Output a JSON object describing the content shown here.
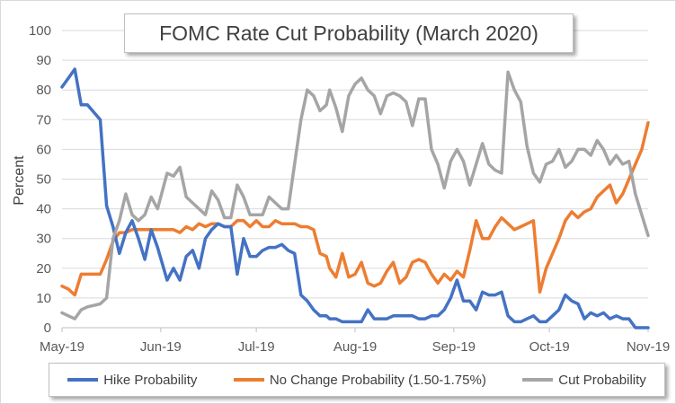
{
  "chart_data": {
    "type": "line",
    "title": "FOMC Rate Cut Probability (March 2020)",
    "xlabel": "",
    "ylabel": "Percent",
    "ylim": [
      0,
      100
    ],
    "yticks": [
      0,
      10,
      20,
      30,
      40,
      50,
      60,
      70,
      80,
      90,
      100
    ],
    "xlim": [
      "2019-05-01",
      "2019-11-01"
    ],
    "xticks": [
      {
        "date": "2019-05-01",
        "label": "May-19"
      },
      {
        "date": "2019-06-01",
        "label": "Jun-19"
      },
      {
        "date": "2019-07-01",
        "label": "Jul-19"
      },
      {
        "date": "2019-08-01",
        "label": "Aug-19"
      },
      {
        "date": "2019-09-01",
        "label": "Sep-19"
      },
      {
        "date": "2019-10-01",
        "label": "Oct-19"
      },
      {
        "date": "2019-11-01",
        "label": "Nov-19"
      }
    ],
    "grid": true,
    "legend_position": "bottom",
    "x": [
      "2019-05-01",
      "2019-05-03",
      "2019-05-05",
      "2019-05-07",
      "2019-05-09",
      "2019-05-13",
      "2019-05-15",
      "2019-05-17",
      "2019-05-19",
      "2019-05-21",
      "2019-05-23",
      "2019-05-25",
      "2019-05-27",
      "2019-05-29",
      "2019-05-31",
      "2019-06-03",
      "2019-06-05",
      "2019-06-07",
      "2019-06-09",
      "2019-06-11",
      "2019-06-13",
      "2019-06-15",
      "2019-06-17",
      "2019-06-19",
      "2019-06-21",
      "2019-06-23",
      "2019-06-25",
      "2019-06-27",
      "2019-06-29",
      "2019-07-01",
      "2019-07-03",
      "2019-07-05",
      "2019-07-07",
      "2019-07-09",
      "2019-07-11",
      "2019-07-13",
      "2019-07-15",
      "2019-07-17",
      "2019-07-19",
      "2019-07-21",
      "2019-07-23",
      "2019-07-24",
      "2019-07-26",
      "2019-07-28",
      "2019-07-30",
      "2019-08-01",
      "2019-08-03",
      "2019-08-05",
      "2019-08-07",
      "2019-08-09",
      "2019-08-11",
      "2019-08-13",
      "2019-08-15",
      "2019-08-17",
      "2019-08-19",
      "2019-08-21",
      "2019-08-23",
      "2019-08-25",
      "2019-08-27",
      "2019-08-29",
      "2019-08-31",
      "2019-09-02",
      "2019-09-04",
      "2019-09-06",
      "2019-09-08",
      "2019-09-10",
      "2019-09-12",
      "2019-09-14",
      "2019-09-16",
      "2019-09-18",
      "2019-09-20",
      "2019-09-22",
      "2019-09-24",
      "2019-09-26",
      "2019-09-28",
      "2019-09-30",
      "2019-10-02",
      "2019-10-04",
      "2019-10-06",
      "2019-10-08",
      "2019-10-10",
      "2019-10-12",
      "2019-10-14",
      "2019-10-16",
      "2019-10-18",
      "2019-10-20",
      "2019-10-22",
      "2019-10-24",
      "2019-10-26",
      "2019-10-28",
      "2019-10-30",
      "2019-11-01"
    ],
    "series": [
      {
        "name": "Hike Probability",
        "color": "#4472c4",
        "values": [
          81,
          84,
          87,
          75,
          75,
          70,
          41,
          34,
          25,
          32,
          36,
          30,
          23,
          33,
          27,
          16,
          20,
          16,
          24,
          26,
          20,
          30,
          33,
          35,
          34,
          34,
          18,
          30,
          24,
          24,
          26,
          27,
          27,
          28,
          26,
          25,
          11,
          9,
          6,
          4,
          4,
          3,
          3,
          2,
          2,
          2,
          2,
          6,
          3,
          3,
          3,
          4,
          4,
          4,
          4,
          3,
          3,
          4,
          4,
          6,
          10,
          16,
          9,
          9,
          6,
          12,
          11,
          11,
          12,
          4,
          2,
          2,
          3,
          4,
          2,
          2,
          4,
          6,
          11,
          9,
          8,
          3,
          5,
          4,
          5,
          3,
          4,
          3,
          3,
          0,
          0,
          0
        ]
      },
      {
        "name": "No Change Probability (1.50-1.75%)",
        "color": "#ed7d31",
        "values": [
          14,
          13,
          11,
          18,
          18,
          18,
          23,
          29,
          32,
          32,
          33,
          33,
          33,
          33,
          33,
          33,
          33,
          32,
          34,
          33,
          35,
          34,
          35,
          35,
          34,
          34,
          36,
          36,
          34,
          36,
          34,
          34,
          36,
          35,
          35,
          35,
          34,
          34,
          33,
          25,
          24,
          20,
          17,
          25,
          17,
          18,
          22,
          15,
          14,
          15,
          19,
          22,
          15,
          17,
          22,
          23,
          22,
          18,
          15,
          18,
          16,
          19,
          17,
          26,
          36,
          30,
          30,
          34,
          37,
          35,
          33,
          34,
          35,
          36,
          12,
          20,
          25,
          30,
          36,
          39,
          37,
          39,
          40,
          44,
          46,
          48,
          42,
          45,
          50,
          55,
          60,
          69
        ]
      },
      {
        "name": "Cut Probability",
        "color": "#a5a5a5",
        "values": [
          5,
          4,
          3,
          6,
          7,
          8,
          10,
          30,
          36,
          45,
          38,
          36,
          38,
          44,
          40,
          52,
          51,
          54,
          44,
          42,
          40,
          38,
          46,
          43,
          37,
          37,
          48,
          44,
          38,
          38,
          38,
          44,
          42,
          40,
          40,
          55,
          70,
          80,
          78,
          73,
          75,
          80,
          74,
          66,
          78,
          82,
          84,
          80,
          78,
          72,
          78,
          79,
          78,
          76,
          68,
          77,
          77,
          60,
          55,
          47,
          56,
          60,
          56,
          48,
          55,
          62,
          55,
          53,
          52,
          86,
          80,
          76,
          61,
          52,
          49,
          55,
          56,
          60,
          54,
          56,
          60,
          60,
          58,
          63,
          60,
          55,
          58,
          55,
          56,
          45,
          38,
          31
        ]
      }
    ]
  }
}
